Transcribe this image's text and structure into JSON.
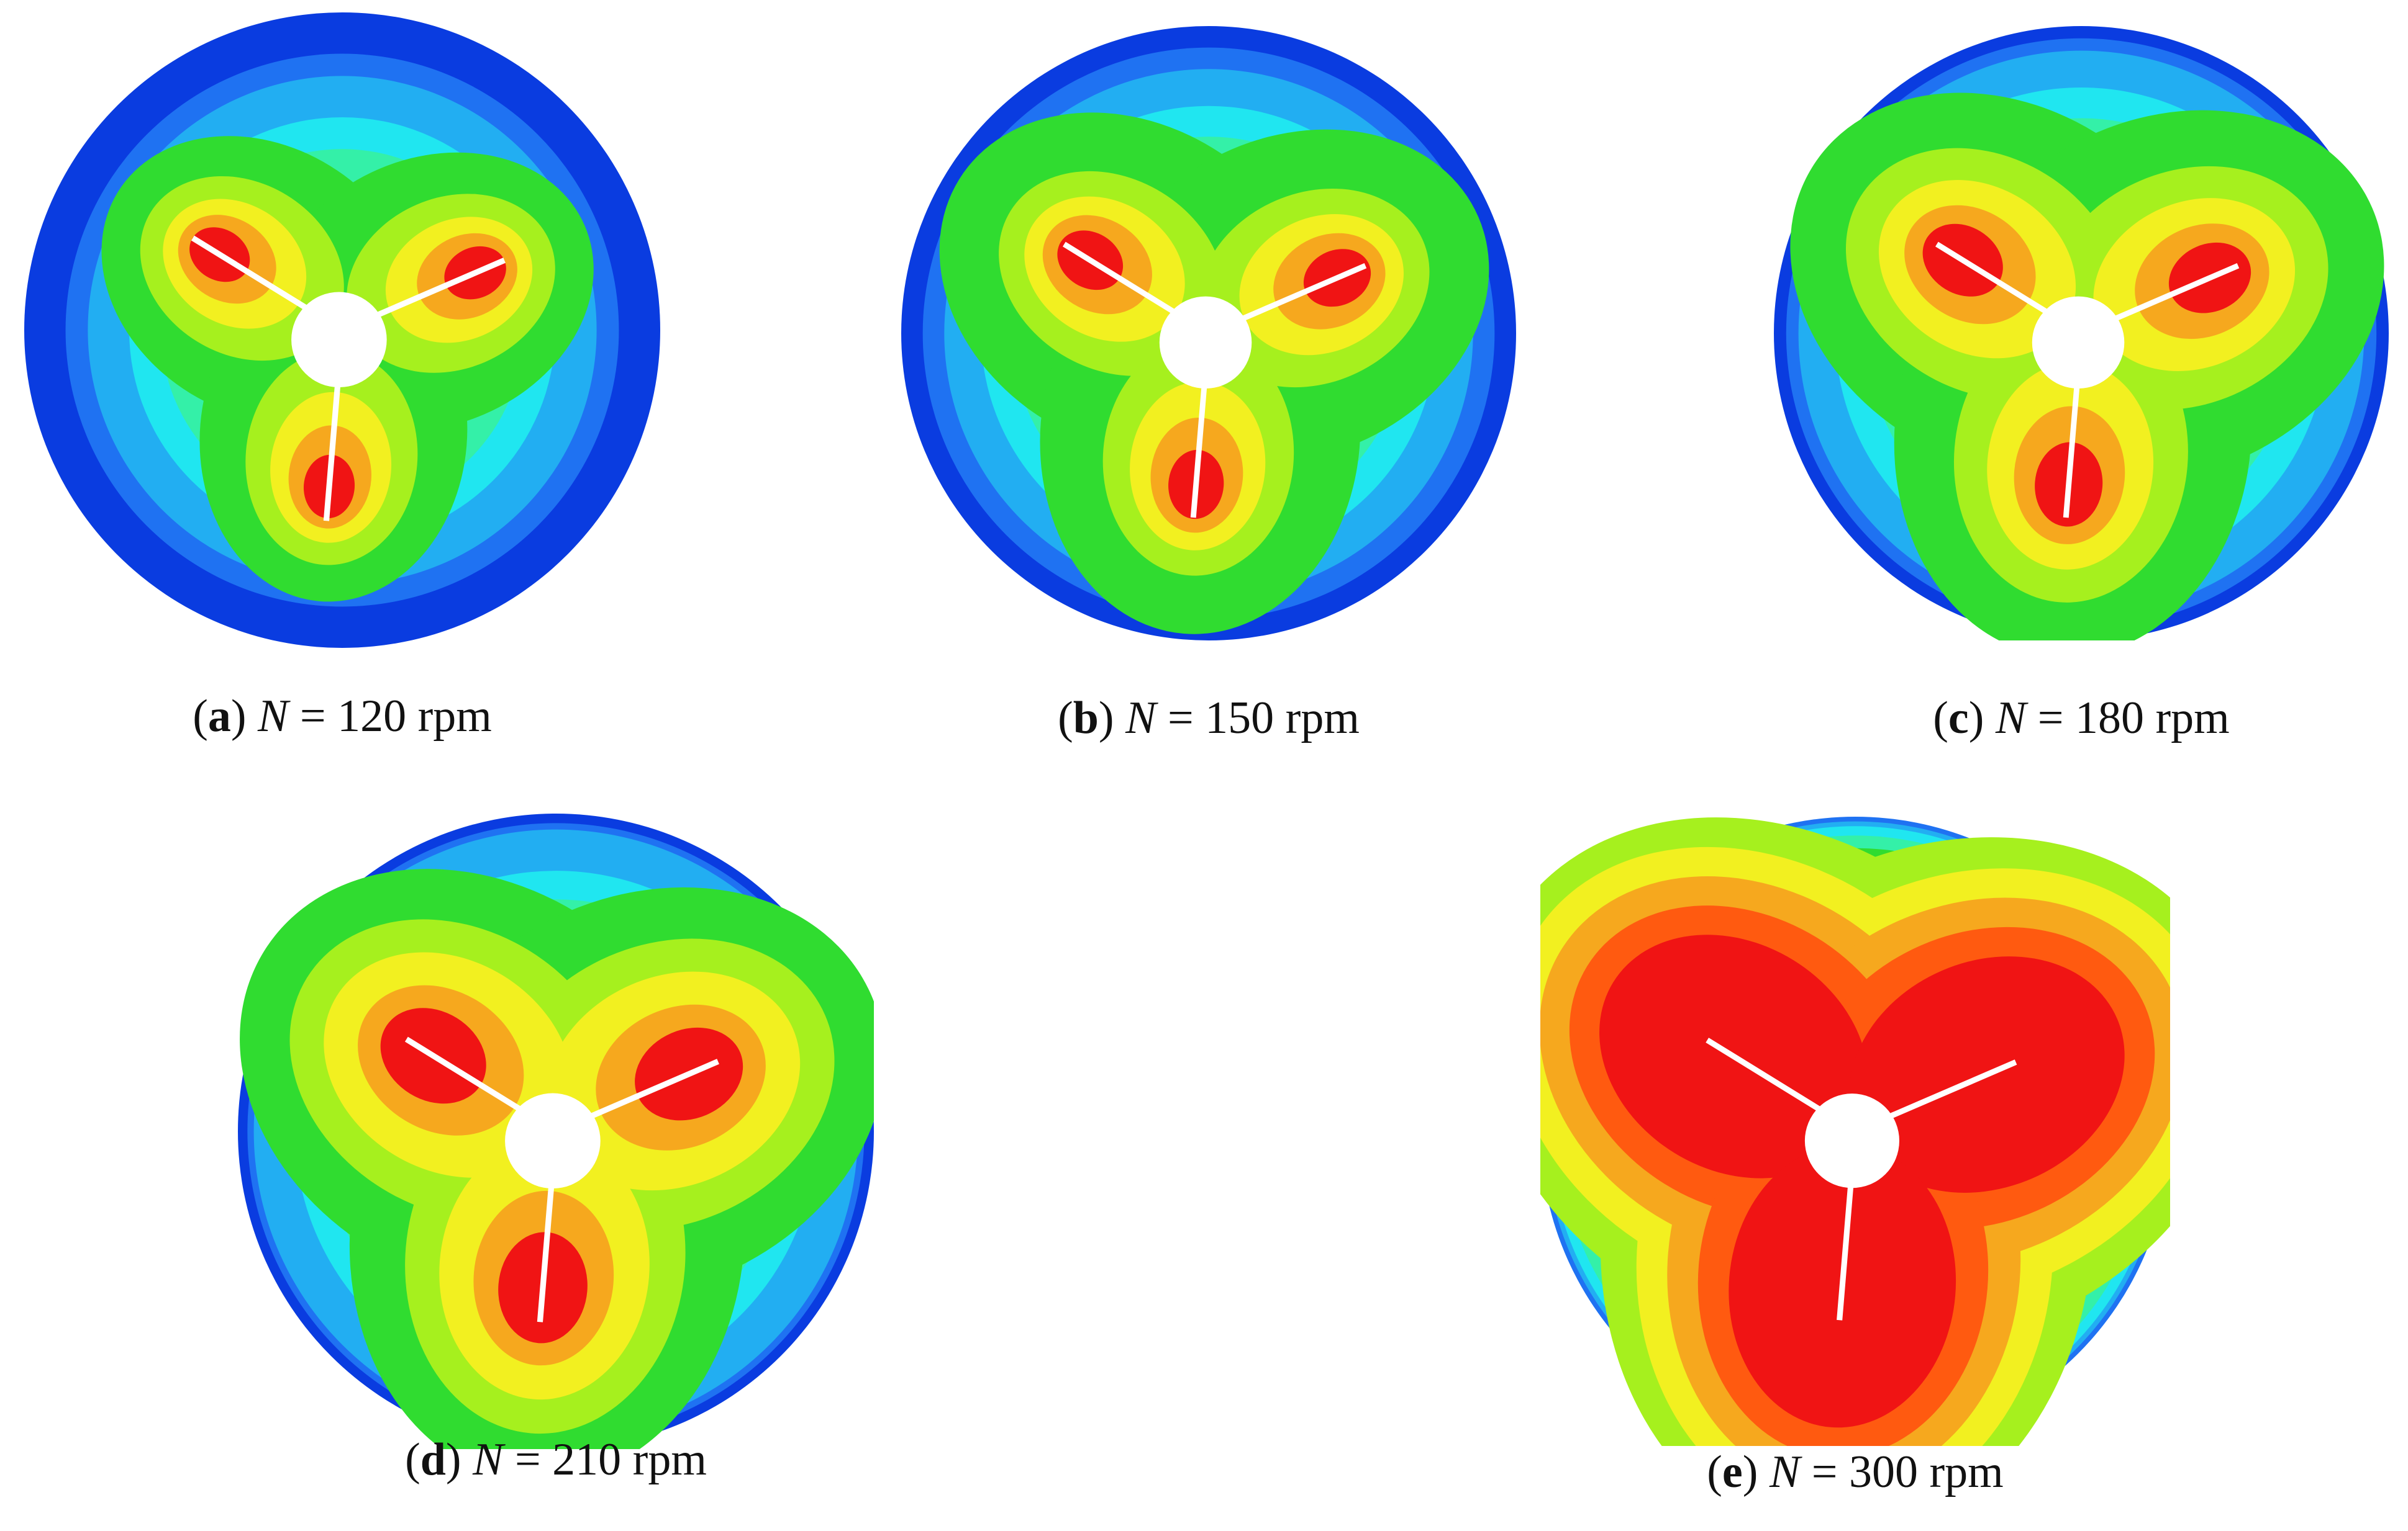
{
  "panels": [
    {
      "caption": [
        "(",
        "a",
        ")",
        "N",
        "= 120 rpm"
      ]
    },
    {
      "caption": [
        "(",
        "b",
        ")",
        "N",
        "= 150 rpm"
      ]
    },
    {
      "caption": [
        "(",
        "c",
        ")",
        "N",
        "= 180 rpm"
      ]
    },
    {
      "caption": [
        "(",
        "d",
        ")",
        "N",
        "= 210 rpm"
      ]
    },
    {
      "caption": [
        "(",
        "e",
        ")",
        "N",
        "= 300 rpm"
      ]
    }
  ]
}
